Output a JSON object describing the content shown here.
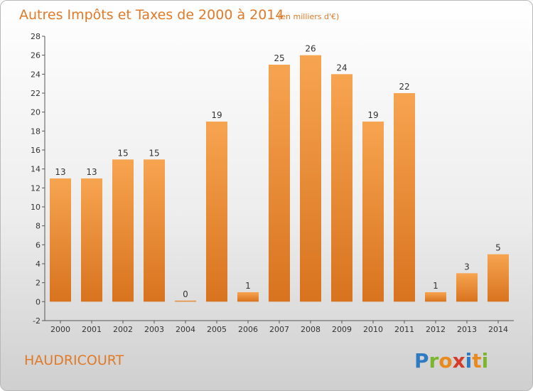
{
  "page": {
    "place": "HAUDRICOURT",
    "logo": "Proxiti"
  },
  "chart_data": {
    "type": "bar",
    "title": "Autres Impôts et Taxes de 2000 à 2014",
    "subtitle": "(en milliers d'€)",
    "categories": [
      "2000",
      "2001",
      "2002",
      "2003",
      "2004",
      "2005",
      "2006",
      "2007",
      "2008",
      "2009",
      "2010",
      "2011",
      "2012",
      "2013",
      "2014"
    ],
    "values": [
      13,
      13,
      15,
      15,
      0,
      19,
      1,
      25,
      26,
      24,
      19,
      22,
      1,
      3,
      5
    ],
    "ylim": [
      -2,
      28
    ],
    "yticks": [
      -2,
      0,
      2,
      4,
      6,
      8,
      10,
      12,
      14,
      16,
      18,
      20,
      22,
      24,
      26,
      28
    ],
    "grid": false,
    "legend": "none",
    "bar_color": "#f0913a"
  },
  "colors": {
    "accent": "#e07a28",
    "bar_light": "#f7a450",
    "bar_dark": "#d8731f"
  }
}
